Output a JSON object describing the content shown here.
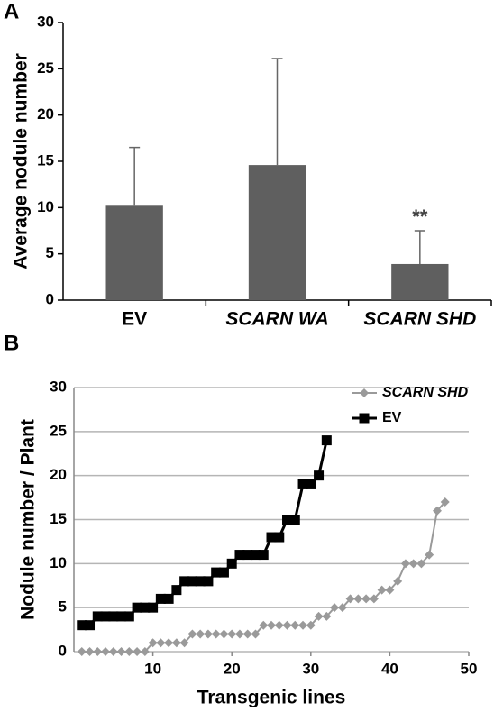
{
  "chart_data": [
    {
      "type": "bar",
      "panel_label": "A",
      "ylabel": "Average nodule number",
      "categories": [
        "EV",
        "SCARN WA",
        "SCARN SHD"
      ],
      "values": [
        10.2,
        14.6,
        3.9
      ],
      "errors": [
        6.3,
        11.5,
        3.6
      ],
      "color": "#5f5f5f",
      "ylim": [
        0,
        30
      ],
      "yticks": [
        0,
        5,
        10,
        15,
        20,
        25,
        30
      ],
      "annotations": [
        {
          "category": "SCARN SHD",
          "text": "**"
        }
      ]
    },
    {
      "type": "line",
      "panel_label": "B",
      "xlabel": "Transgenic lines",
      "ylabel": "Nodule number / Plant",
      "xlim": [
        0,
        50
      ],
      "xticks": [
        10,
        20,
        30,
        40,
        50
      ],
      "ylim": [
        0,
        30
      ],
      "yticks": [
        0,
        5,
        10,
        15,
        20,
        25,
        30
      ],
      "grid": true,
      "legend": "upper right",
      "series": [
        {
          "name": "SCARN SHD",
          "color": "#9a9a9a",
          "marker": "diamond",
          "x": [
            1,
            2,
            3,
            4,
            5,
            6,
            7,
            8,
            9,
            10,
            11,
            12,
            13,
            14,
            15,
            16,
            17,
            18,
            19,
            20,
            21,
            22,
            23,
            24,
            25,
            26,
            27,
            28,
            29,
            30,
            31,
            32,
            33,
            34,
            35,
            36,
            37,
            38,
            39,
            40,
            41,
            42,
            43,
            44,
            45,
            46,
            47
          ],
          "values": [
            0,
            0,
            0,
            0,
            0,
            0,
            0,
            0,
            0,
            1,
            1,
            1,
            1,
            1,
            2,
            2,
            2,
            2,
            2,
            2,
            2,
            2,
            2,
            3,
            3,
            3,
            3,
            3,
            3,
            3,
            4,
            4,
            5,
            5,
            6,
            6,
            6,
            6,
            7,
            7,
            8,
            10,
            10,
            10,
            11,
            16,
            17
          ]
        },
        {
          "name": "EV",
          "color": "#000000",
          "marker": "square",
          "x": [
            1,
            2,
            3,
            4,
            5,
            6,
            7,
            8,
            9,
            10,
            11,
            12,
            13,
            14,
            15,
            16,
            17,
            18,
            19,
            20,
            21,
            22,
            23,
            24,
            25,
            26,
            27,
            28,
            29,
            30,
            31,
            32
          ],
          "values": [
            3,
            3,
            4,
            4,
            4,
            4,
            4,
            5,
            5,
            5,
            6,
            6,
            7,
            8,
            8,
            8,
            8,
            9,
            9,
            10,
            11,
            11,
            11,
            11,
            13,
            13,
            15,
            15,
            19,
            19,
            20,
            24
          ]
        }
      ]
    }
  ]
}
